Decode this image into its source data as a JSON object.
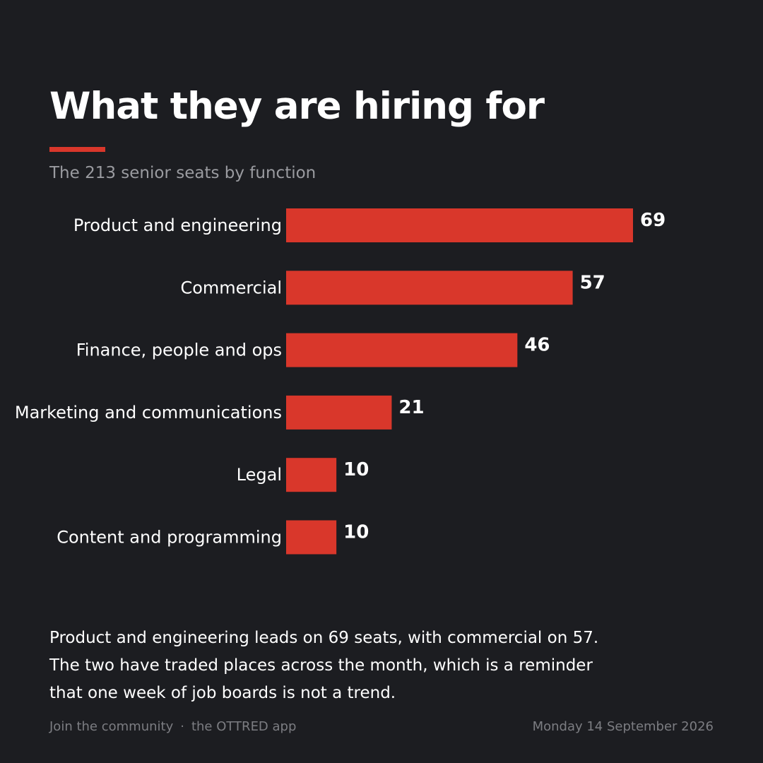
{
  "header": {
    "title": "What they are hiring for",
    "subtitle": "The 213 senior seats by function"
  },
  "colors": {
    "background": "#1c1d21",
    "accent": "#d9372b",
    "bar": "#d9372b",
    "muted_text": "#9a9ba0"
  },
  "chart_data": {
    "type": "bar",
    "orientation": "horizontal",
    "title": "",
    "xlabel": "",
    "ylabel": "",
    "categories": [
      "Product and engineering",
      "Commercial",
      "Finance, people and ops",
      "Marketing and communications",
      "Legal",
      "Content and programming"
    ],
    "values": [
      69,
      57,
      46,
      21,
      10,
      10
    ],
    "xlim": [
      0,
      69
    ],
    "grid": false,
    "legend": "none"
  },
  "caption": {
    "lines": [
      "Product and engineering leads on 69 seats, with commercial on 57.",
      "The two have traded places across the month, which is a reminder",
      "that one week of job boards is not a trend."
    ]
  },
  "footer": {
    "cta": "Join the community",
    "separator": "·",
    "app": "the OTTRED app",
    "date": "Monday 14 September 2026"
  }
}
